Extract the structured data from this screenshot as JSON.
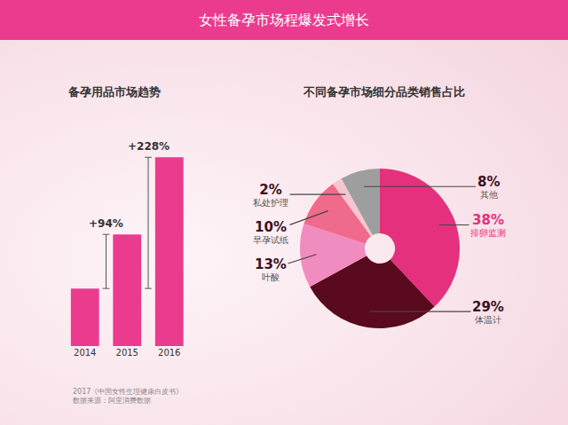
{
  "title": "女性备孕市场程爆发式增长",
  "notes": [
    "2017《中国女性生理健康白皮书》",
    "数据来源：阿里消费数据"
  ],
  "chart_data": [
    {
      "type": "bar",
      "title": "备孕用品市场趋势",
      "categories": [
        "2014",
        "2015",
        "2016"
      ],
      "values": [
        100,
        194,
        328
      ],
      "color": "#ea3b8f",
      "ylim": [
        0,
        350
      ],
      "tick_labels": "x",
      "annotations": [
        {
          "text": "+94%",
          "from": "2014",
          "to": "2015"
        },
        {
          "text": "+228%",
          "from": "2014",
          "to": "2016"
        }
      ]
    },
    {
      "type": "pie",
      "title": "不同备孕市场细分品类销售占比",
      "categories": [
        "排卵监测",
        "体温计",
        "叶酸",
        "早孕试纸",
        "私处护理",
        "其他"
      ],
      "values": [
        38,
        29,
        13,
        10,
        2,
        8
      ],
      "value_labels": [
        "38%",
        "29%",
        "13%",
        "10%",
        "2%",
        "8%"
      ],
      "colors": [
        "#e5307d",
        "#5a0a1e",
        "#f08cbf",
        "#f06a8c",
        "#f5c6d0",
        "#9e9e9e"
      ],
      "data_labels": true
    }
  ]
}
